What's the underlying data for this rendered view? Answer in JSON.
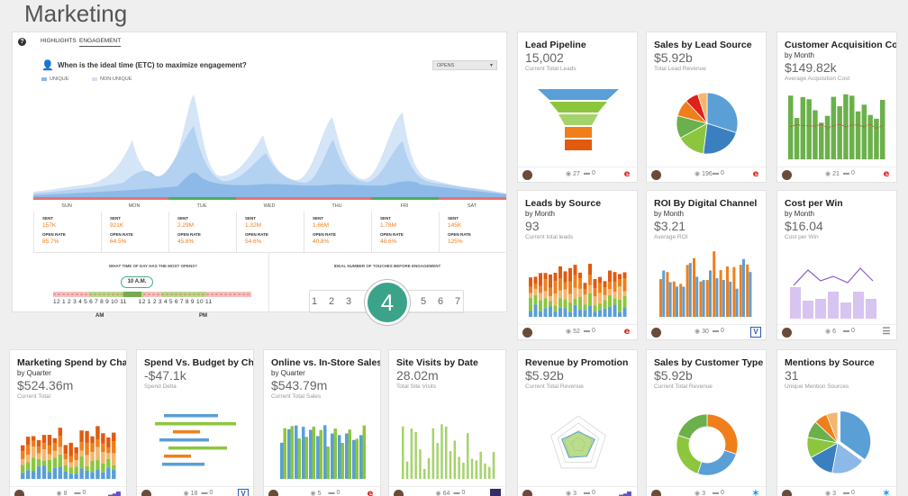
{
  "page": {
    "title": "Marketing"
  },
  "engagement": {
    "help_glyph": "?",
    "tabs": [
      "HIGHLIGHTS",
      "ENGAGEMENT"
    ],
    "question": "When is the ideal time (ETC) to maximize engagement?",
    "dropdown": "OPENS",
    "legend": [
      "UNIQUE",
      "NON-UNIQUE"
    ],
    "days": [
      {
        "name": "SUN",
        "sent": "157K",
        "open_rate": "85.7%"
      },
      {
        "name": "MON",
        "sent": "921K",
        "open_rate": "64.5%"
      },
      {
        "name": "TUE",
        "sent": "2.29M",
        "open_rate": "45.8%"
      },
      {
        "name": "WED",
        "sent": "1.32M",
        "open_rate": "54.6%"
      },
      {
        "name": "THU",
        "sent": "1.66M",
        "open_rate": "40.8%"
      },
      {
        "name": "FRI",
        "sent": "1.78M",
        "open_rate": "48.6%"
      },
      {
        "name": "SAT",
        "sent": "145K",
        "open_rate": "125%"
      }
    ],
    "sent_label": "SENT",
    "open_rate_label": "OPEN RATE",
    "time_title": "WHAT TIME OF DAY HAS THE MOST OPENS?",
    "time_callout": "10 A.M.",
    "hours": [
      "12",
      "1",
      "2",
      "3",
      "4",
      "5",
      "6",
      "7",
      "8",
      "9",
      "10",
      "11",
      "12",
      "1",
      "2",
      "3",
      "4",
      "5",
      "6",
      "7",
      "8",
      "9",
      "10",
      "11"
    ],
    "am": "AM",
    "pm": "PM",
    "touches_title": "IDEAL NUMBER OF TOUCHES BEFORE ENGAGEMENT",
    "touches": [
      "1",
      "2",
      "3",
      "5",
      "6",
      "7"
    ],
    "touches_best": "4"
  },
  "cards": {
    "lead_pipeline": {
      "title": "Lead Pipeline",
      "value": "15,002",
      "caption": "Current Total Leads",
      "views": "27",
      "comments": "0"
    },
    "sales_by_lead_source": {
      "title": "Sales by Lead Source",
      "value": "$5.92b",
      "caption": "Total Lead Revenue",
      "views": "196",
      "comments": "0"
    },
    "customer_acquisition_cost": {
      "title": "Customer Acquisition Cost",
      "subtitle": "by Month",
      "value": "$149.82k",
      "caption": "Average Acquisition Cost",
      "views": "21",
      "comments": "0"
    },
    "leads_by_source": {
      "title": "Leads by Source",
      "subtitle": "by Month",
      "value": "93",
      "caption": "Current total leads",
      "views": "52",
      "comments": "0"
    },
    "roi_by_digital_channel": {
      "title": "ROI By Digital Channel",
      "subtitle": "by Month",
      "value": "$3.21",
      "caption": "Average ROI",
      "views": "30",
      "comments": "0"
    },
    "cost_per_win": {
      "title": "Cost per Win",
      "subtitle": "by Month",
      "value": "$16.04",
      "caption": "Cost per Win",
      "views": "6",
      "comments": "0"
    },
    "marketing_spend": {
      "title": "Marketing Spend by Cha...",
      "subtitle": "by Quarter",
      "value": "$524.36m",
      "caption": "Current Total",
      "views": "8",
      "comments": "0"
    },
    "spend_vs_budget": {
      "title": "Spend Vs. Budget by Cha...",
      "value": "-$47.1k",
      "caption": "Spend Delta",
      "views": "18",
      "comments": "0"
    },
    "online_vs_instore": {
      "title": "Online vs. In-Store Sales",
      "subtitle": "by Quarter",
      "value": "$543.79m",
      "caption": "Current Total Sales",
      "views": "5",
      "comments": "0"
    },
    "site_visits": {
      "title": "Site Visits by Date",
      "value": "28.02m",
      "caption": "Total Site Visits",
      "views": "64",
      "comments": "0"
    },
    "revenue_by_promotion": {
      "title": "Revenue by Promotion",
      "value": "$5.92b",
      "caption": "Current Total Revenue",
      "views": "3",
      "comments": "0"
    },
    "sales_by_customer_type": {
      "title": "Sales by Customer Type",
      "value": "$5.92b",
      "caption": "Current Total Revenue",
      "views": "3",
      "comments": "0"
    },
    "mentions_by_source": {
      "title": "Mentions by Source",
      "value": "31",
      "caption": "Unique Mention Sources",
      "views": "3",
      "comments": "0"
    }
  },
  "icons": {
    "views": "eye-icon",
    "comments": "comment-icon",
    "e": "e-source-icon",
    "v": "v-source-icon"
  },
  "colors": {
    "accent_green": "#3aa38a",
    "orange": "#f07f1b",
    "red": "#e0201b",
    "blue": "#5a9fd6",
    "light_green": "#8cc63f",
    "purple_light": "#d8c4f0"
  }
}
